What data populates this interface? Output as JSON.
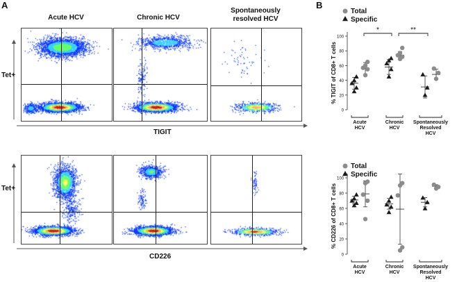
{
  "panel_a": {
    "letter": "A",
    "column_titles": [
      "Acute HCV",
      "Chronic HCV",
      "Spontaneously\nresolved HCV"
    ],
    "top_row": {
      "y_label": "Tet+",
      "x_label": "TIGIT"
    },
    "bottom_row": {
      "y_label": "Tet+",
      "x_label": "CD226"
    }
  },
  "panel_b": {
    "letter": "B",
    "legend": {
      "total": "Total",
      "specific": "Specific"
    },
    "colors": {
      "total": "#8c8c8c",
      "specific": "#1a1a1a"
    }
  },
  "chart_data": [
    {
      "type": "scatter",
      "ylabel": "% TIGIT of CD8+ T cells",
      "ylim": [
        0,
        100
      ],
      "yticks": [
        0,
        20,
        40,
        60,
        80,
        100
      ],
      "groups": [
        "Acute\nHCV",
        "Chronic\nHCV",
        "Spontaneously\nResolved\nHCV"
      ],
      "series": [
        {
          "name": "Specific",
          "marker": "triangle",
          "points": [
            [
              0,
              25
            ],
            [
              0,
              30
            ],
            [
              0,
              36
            ],
            [
              0,
              40
            ],
            [
              0,
              45
            ],
            [
              1,
              45
            ],
            [
              1,
              55
            ],
            [
              1,
              63
            ],
            [
              1,
              67
            ],
            [
              1,
              70
            ],
            [
              2,
              20
            ],
            [
              2,
              30
            ],
            [
              2,
              48
            ]
          ]
        },
        {
          "name": "Total",
          "marker": "circle",
          "points": [
            [
              0,
              47
            ],
            [
              0,
              55
            ],
            [
              0,
              57
            ],
            [
              0,
              60
            ],
            [
              0,
              65
            ],
            [
              1,
              69
            ],
            [
              1,
              72
            ],
            [
              1,
              74
            ],
            [
              1,
              77
            ],
            [
              1,
              84
            ],
            [
              2,
              42
            ],
            [
              2,
              50
            ],
            [
              2,
              56
            ]
          ]
        }
      ],
      "means": {
        "Specific": [
          36,
          58,
          31
        ],
        "Total": [
          56,
          74,
          48
        ]
      },
      "error": {
        "Specific": [
          8,
          10,
          15
        ],
        "Total": [
          8,
          5,
          7
        ]
      },
      "significance": [
        {
          "between": [
            "Acute\nHCV",
            "Chronic\nHCV"
          ],
          "label": "*"
        },
        {
          "between": [
            "Chronic\nHCV",
            "Spontaneously\nResolved\nHCV"
          ],
          "label": "**"
        }
      ],
      "legend_position": "top-left"
    },
    {
      "type": "scatter",
      "ylabel": "% CD226 of CD8+ T cells",
      "ylim": [
        0,
        100
      ],
      "yticks": [
        0,
        20,
        40,
        60,
        80,
        100
      ],
      "groups": [
        "Acute\nHCV",
        "Chronic\nHCV",
        "Spontaneously\nResolved\nHCV"
      ],
      "series": [
        {
          "name": "Specific",
          "marker": "triangle",
          "points": [
            [
              0,
              64
            ],
            [
              0,
              67
            ],
            [
              0,
              70
            ],
            [
              0,
              73
            ],
            [
              0,
              78
            ],
            [
              1,
              55
            ],
            [
              1,
              62
            ],
            [
              1,
              65
            ],
            [
              1,
              70
            ],
            [
              1,
              75
            ],
            [
              2,
              60
            ],
            [
              2,
              68
            ],
            [
              2,
              74
            ]
          ]
        },
        {
          "name": "Total",
          "marker": "circle",
          "points": [
            [
              0,
              46
            ],
            [
              0,
              70
            ],
            [
              0,
              78
            ],
            [
              0,
              93
            ],
            [
              0,
              95
            ],
            [
              1,
              5
            ],
            [
              1,
              9
            ],
            [
              1,
              77
            ],
            [
              1,
              90
            ],
            [
              1,
              93
            ],
            [
              2,
              86
            ],
            [
              2,
              88
            ],
            [
              2,
              91
            ]
          ]
        }
      ],
      "means": {
        "Specific": [
          71,
          66,
          68
        ],
        "Total": [
          79,
          59,
          89
        ]
      },
      "error": {
        "Specific": [
          5,
          7,
          6
        ],
        "Total": [
          17,
          46,
          2
        ]
      },
      "legend_position": "top-left"
    }
  ]
}
